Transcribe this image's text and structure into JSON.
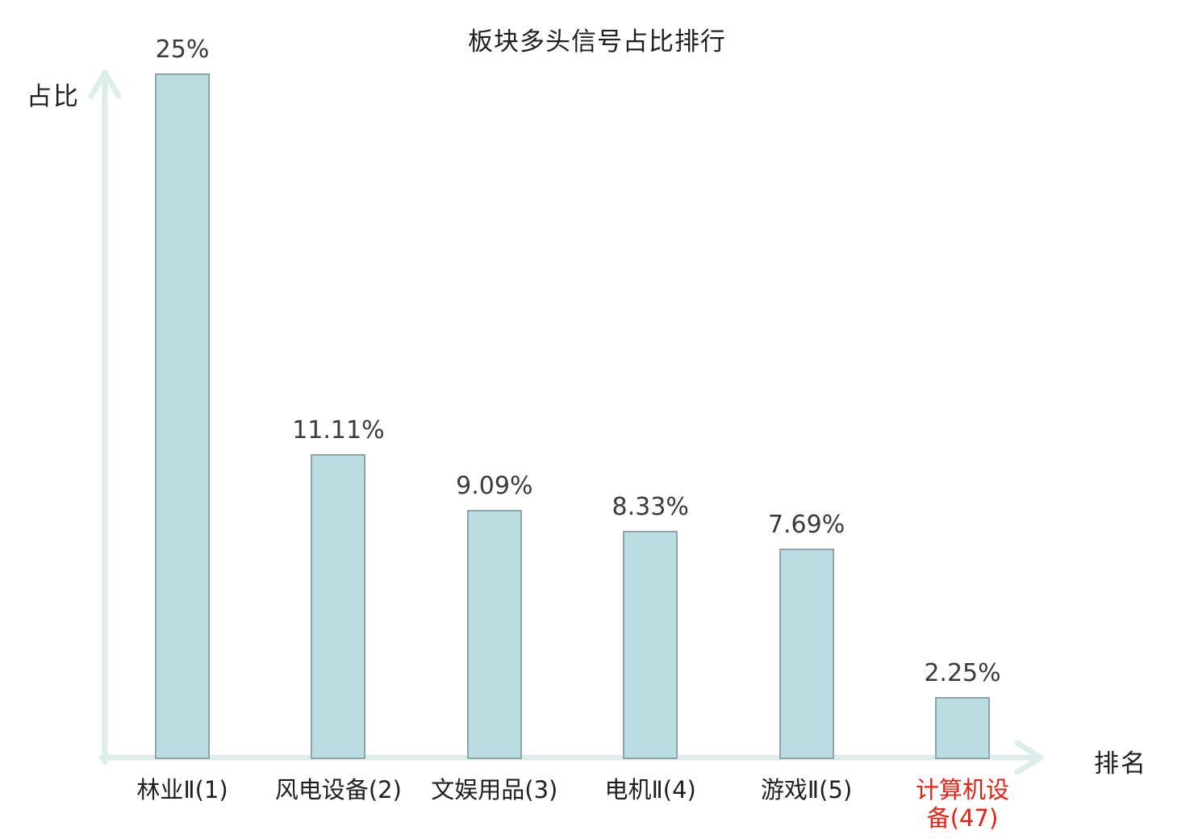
{
  "chart_data": {
    "type": "bar",
    "title": "板块多头信号占比排行",
    "xlabel": "排名",
    "ylabel": "占比",
    "categories": [
      "林业Ⅱ(1)",
      "风电设备(2)",
      "文娱用品(3)",
      "电机Ⅱ(4)",
      "游戏Ⅱ(5)",
      "计算机设备(47)"
    ],
    "values": [
      25,
      11.11,
      9.09,
      8.33,
      7.69,
      2.25
    ],
    "value_labels": [
      "25%",
      "11.11%",
      "9.09%",
      "8.33%",
      "7.69%",
      "2.25%"
    ],
    "ylim": [
      0,
      25
    ],
    "grid": false,
    "legend": "none",
    "highlight_index": 5,
    "highlight_color": "#e52015",
    "bar_fill": "#b9dde0",
    "bar_border": "#8fa4a8",
    "axis_color": "#ddeeea",
    "title_color": "#1f1f1f",
    "value_label_color": "#3a3a3a"
  }
}
